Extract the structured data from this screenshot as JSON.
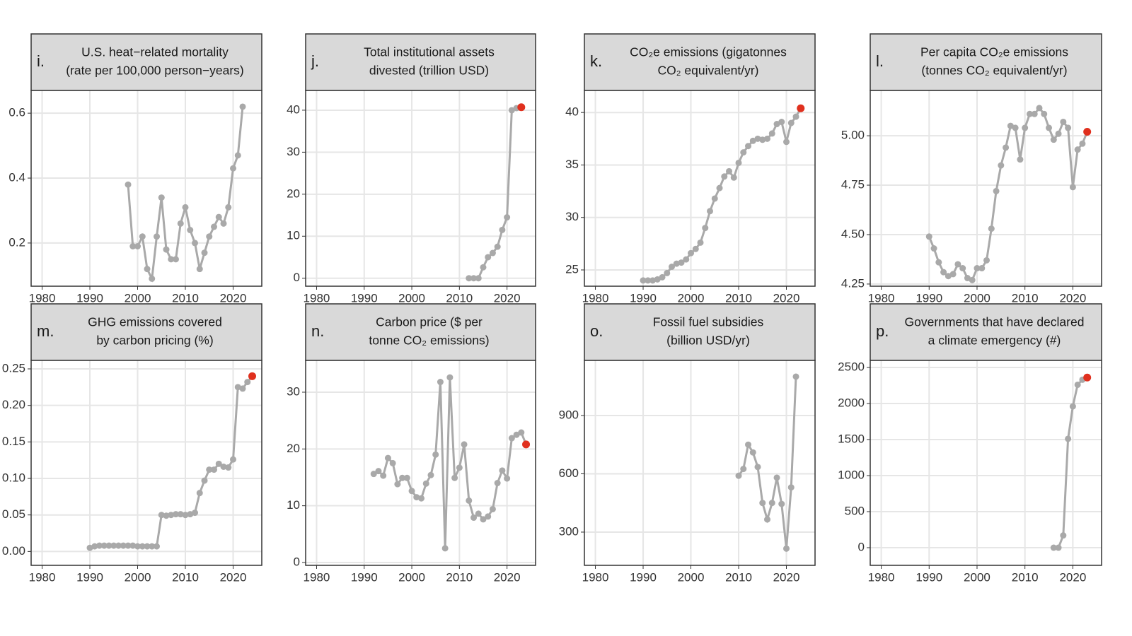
{
  "chart_data": [
    {
      "type": "line",
      "label": "i.",
      "title": [
        "U.S. heat−related mortality",
        "(rate per 100,000 person−years)"
      ],
      "x": [
        1998,
        1999,
        2000,
        2001,
        2002,
        2003,
        2004,
        2005,
        2006,
        2007,
        2008,
        2009,
        2010,
        2011,
        2012,
        2013,
        2014,
        2015,
        2016,
        2017,
        2018,
        2019,
        2020,
        2021,
        2022
      ],
      "values": [
        0.38,
        0.19,
        0.19,
        0.22,
        0.12,
        0.09,
        0.22,
        0.34,
        0.18,
        0.15,
        0.15,
        0.26,
        0.31,
        0.24,
        0.2,
        0.12,
        0.17,
        0.22,
        0.25,
        0.28,
        0.26,
        0.31,
        0.43,
        0.47,
        0.62
      ],
      "xlim": [
        1977.7,
        2026
      ],
      "ylim": [
        0.067,
        0.67
      ],
      "xticks": [
        1980,
        1990,
        2000,
        2010,
        2020
      ],
      "yticks": [
        0.2,
        0.4,
        0.6
      ],
      "color": "#a9a9a9",
      "grid": true
    },
    {
      "type": "line",
      "label": "j.",
      "title": [
        "Total institutional assets",
        "divested (trillion USD)"
      ],
      "x": [
        2012,
        2013,
        2014,
        2015,
        2016,
        2017,
        2018,
        2019,
        2020,
        2021,
        2022,
        2023
      ],
      "values": [
        0,
        0,
        0,
        2.6,
        5,
        6,
        7.5,
        11.5,
        14.5,
        40,
        40.5,
        40.7
      ],
      "xlim": [
        1977.7,
        2026
      ],
      "ylim": [
        -1.9,
        44.7
      ],
      "xticks": [
        1980,
        1990,
        2000,
        2010,
        2020
      ],
      "yticks": [
        0,
        10,
        20,
        30,
        40
      ],
      "color": "#a9a9a9",
      "highlight_color": "#e0301e",
      "grid": true
    },
    {
      "type": "line",
      "label": "k.",
      "title": [
        "CO₂e emissions (gigatonnes",
        "CO₂ equivalent/yr)"
      ],
      "x": [
        1990,
        1991,
        1992,
        1993,
        1994,
        1995,
        1996,
        1997,
        1998,
        1999,
        2000,
        2001,
        2002,
        2003,
        2004,
        2005,
        2006,
        2007,
        2008,
        2009,
        2010,
        2011,
        2012,
        2013,
        2014,
        2015,
        2016,
        2017,
        2018,
        2019,
        2020,
        2021,
        2022,
        2023
      ],
      "values": [
        24.0,
        24.0,
        24.0,
        24.1,
        24.3,
        24.7,
        25.3,
        25.6,
        25.7,
        26.0,
        26.6,
        27.0,
        27.6,
        29.0,
        30.6,
        31.8,
        32.8,
        33.9,
        34.4,
        33.8,
        35.2,
        36.2,
        36.8,
        37.3,
        37.5,
        37.4,
        37.5,
        38.0,
        38.9,
        39.1,
        37.2,
        39.0,
        39.6,
        40.4
      ],
      "xlim": [
        1977.7,
        2026
      ],
      "ylim": [
        23.45,
        42.1
      ],
      "xticks": [
        1980,
        1990,
        2000,
        2010,
        2020
      ],
      "yticks": [
        25,
        30,
        35,
        40
      ],
      "color": "#a9a9a9",
      "highlight_color": "#e0301e",
      "grid": true
    },
    {
      "type": "line",
      "label": "l.",
      "title": [
        "Per capita CO₂e emissions",
        "(tonnes CO₂ equivalent/yr)"
      ],
      "x": [
        1990,
        1991,
        1992,
        1993,
        1994,
        1995,
        1996,
        1997,
        1998,
        1999,
        2000,
        2001,
        2002,
        2003,
        2004,
        2005,
        2006,
        2007,
        2008,
        2009,
        2010,
        2011,
        2012,
        2013,
        2014,
        2015,
        2016,
        2017,
        2018,
        2019,
        2020,
        2021,
        2022,
        2023
      ],
      "values": [
        4.49,
        4.43,
        4.36,
        4.31,
        4.29,
        4.3,
        4.35,
        4.33,
        4.28,
        4.27,
        4.33,
        4.33,
        4.37,
        4.53,
        4.72,
        4.85,
        4.94,
        5.05,
        5.04,
        4.88,
        5.04,
        5.11,
        5.11,
        5.14,
        5.11,
        5.04,
        4.98,
        5.01,
        5.07,
        5.04,
        4.74,
        4.93,
        4.96,
        5.02
      ],
      "xlim": [
        1977.7,
        2026
      ],
      "ylim": [
        4.239,
        5.229
      ],
      "xticks": [
        1980,
        1990,
        2000,
        2010,
        2020
      ],
      "yticks": [
        4.25,
        {
          "value": 4.5,
          "label": "4.50"
        },
        4.75,
        {
          "value": 5,
          "label": "5.00"
        }
      ],
      "color": "#a9a9a9",
      "highlight_color": "#e0301e",
      "grid": true
    },
    {
      "type": "line",
      "label": "m.",
      "title": [
        "GHG emissions covered",
        "by carbon pricing (%)"
      ],
      "x": [
        1990,
        1991,
        1992,
        1993,
        1994,
        1995,
        1996,
        1997,
        1998,
        1999,
        2000,
        2001,
        2002,
        2003,
        2004,
        2005,
        2006,
        2007,
        2008,
        2009,
        2010,
        2011,
        2012,
        2013,
        2014,
        2015,
        2016,
        2017,
        2018,
        2019,
        2020,
        2021,
        2022,
        2023,
        2024
      ],
      "values": [
        0.005,
        0.007,
        0.008,
        0.008,
        0.008,
        0.008,
        0.008,
        0.008,
        0.008,
        0.008,
        0.007,
        0.007,
        0.007,
        0.007,
        0.007,
        0.05,
        0.049,
        0.05,
        0.051,
        0.051,
        0.05,
        0.051,
        0.053,
        0.08,
        0.097,
        0.112,
        0.112,
        0.12,
        0.116,
        0.115,
        0.126,
        0.225,
        0.223,
        0.232,
        0.24
      ],
      "xlim": [
        1977.7,
        2026
      ],
      "ylim": [
        -0.019,
        0.2616
      ],
      "xticks": [
        1980,
        1990,
        2000,
        2010,
        2020
      ],
      "yticks": [
        {
          "value": 0,
          "label": "0.00"
        },
        0.05,
        {
          "value": 0.1,
          "label": "0.10"
        },
        0.15,
        {
          "value": 0.2,
          "label": "0.20"
        },
        0.25
      ],
      "color": "#a9a9a9",
      "highlight_color": "#e0301e",
      "grid": true
    },
    {
      "type": "line",
      "label": "n.",
      "title": [
        "Carbon price ($ per",
        "tonne CO₂ emissions)"
      ],
      "x": [
        1992,
        1993,
        1994,
        1995,
        1996,
        1997,
        1998,
        1999,
        2000,
        2001,
        2002,
        2003,
        2004,
        2005,
        2006,
        2007,
        2008,
        2009,
        2010,
        2011,
        2012,
        2013,
        2014,
        2015,
        2016,
        2017,
        2018,
        2019,
        2020,
        2021,
        2022,
        2023,
        2024
      ],
      "values": [
        15.6,
        16.1,
        15.3,
        18.4,
        17.5,
        13.8,
        14.9,
        14.9,
        12.6,
        11.5,
        11.3,
        13.9,
        15.4,
        19.0,
        31.8,
        2.5,
        32.6,
        14.9,
        16.7,
        20.8,
        10.9,
        7.9,
        8.6,
        7.6,
        8.1,
        9.4,
        14.0,
        16.2,
        14.8,
        21.9,
        22.5,
        22.9,
        20.8
      ],
      "xlim": [
        1977.7,
        2026
      ],
      "ylim": [
        -0.5,
        35.6
      ],
      "xticks": [
        1980,
        1990,
        2000,
        2010,
        2020
      ],
      "yticks": [
        0,
        10,
        20,
        30
      ],
      "color": "#a9a9a9",
      "highlight_color": "#e0301e",
      "grid": true
    },
    {
      "type": "line",
      "label": "o.",
      "title": [
        "Fossil fuel subsidies",
        "(billion USD/yr)"
      ],
      "x": [
        2010,
        2011,
        2012,
        2013,
        2014,
        2015,
        2016,
        2017,
        2018,
        2019,
        2020,
        2021,
        2022
      ],
      "values": [
        590,
        625,
        750,
        710,
        635,
        450,
        365,
        450,
        580,
        445,
        215,
        530,
        1100
      ],
      "xlim": [
        1977.7,
        2026
      ],
      "ylim": [
        129,
        1183.6
      ],
      "xticks": [
        1980,
        1990,
        2000,
        2010,
        2020
      ],
      "yticks": [
        300,
        600,
        900
      ],
      "color": "#a9a9a9",
      "grid": true
    },
    {
      "type": "line",
      "label": "p.",
      "title": [
        "Governments that have declared",
        "a climate emergency (#)"
      ],
      "x": [
        2016,
        2017,
        2018,
        2019,
        2020,
        2021,
        2022,
        2023
      ],
      "values": [
        0,
        0,
        170,
        1510,
        1960,
        2260,
        2330,
        2360
      ],
      "xlim": [
        1977.7,
        2026
      ],
      "ylim": [
        -245,
        2598
      ],
      "xticks": [
        1980,
        1990,
        2000,
        2010,
        2020
      ],
      "yticks": [
        0,
        500,
        1000,
        1500,
        2000,
        2500
      ],
      "color": "#a9a9a9",
      "highlight_color": "#e0301e",
      "grid": true
    }
  ]
}
